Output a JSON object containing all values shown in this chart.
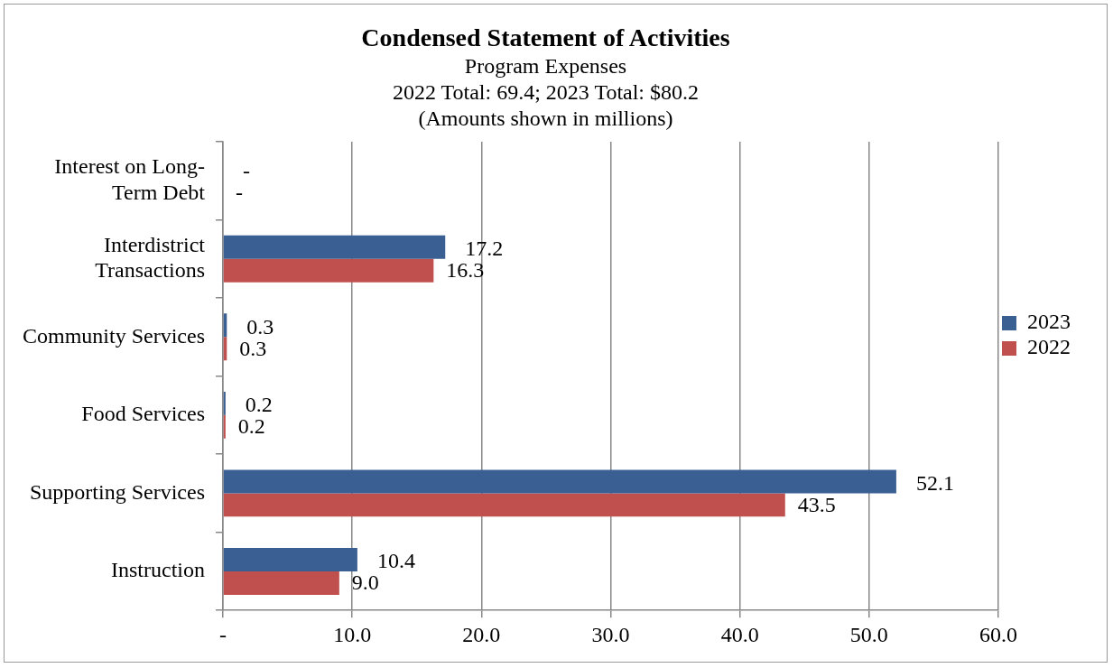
{
  "chart_data": {
    "type": "bar",
    "orientation": "horizontal",
    "title": "Condensed Statement of Activities",
    "subtitle": "Program Expenses\n2022 Total: 69.4; 2023 Total: $80.2\n(Amounts shown in millions)",
    "categories": [
      "Interest on Long-Term Debt",
      "Interdistrict Transactions",
      "Community Services",
      "Food Services",
      "Supporting Services",
      "Instruction"
    ],
    "series": [
      {
        "name": "2023",
        "color": "#3a5f93",
        "values": [
          0,
          17.2,
          0.3,
          0.2,
          52.1,
          10.4
        ],
        "value_labels": [
          "-",
          "17.2",
          "0.3",
          "0.2",
          "52.1",
          "10.4"
        ]
      },
      {
        "name": "2022",
        "color": "#c0504d",
        "values": [
          0,
          16.3,
          0.3,
          0.2,
          43.5,
          9.0
        ],
        "value_labels": [
          "-",
          "16.3",
          "0.3",
          "0.2",
          "43.5",
          "9.0"
        ]
      }
    ],
    "xlim": [
      0,
      60
    ],
    "xticks": [
      {
        "value": 0,
        "label": "-"
      },
      {
        "value": 10,
        "label": "10.0"
      },
      {
        "value": 20,
        "label": "20.0"
      },
      {
        "value": 30,
        "label": "30.0"
      },
      {
        "value": 40,
        "label": "40.0"
      },
      {
        "value": 50,
        "label": "50.0"
      },
      {
        "value": 60,
        "label": "60.0"
      }
    ],
    "grid": "x",
    "legend": "right"
  }
}
